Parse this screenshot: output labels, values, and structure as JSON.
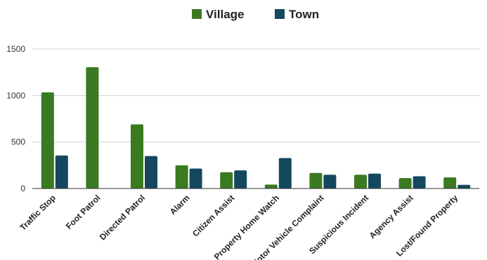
{
  "chart_data": {
    "type": "bar",
    "categories": [
      "Traffic Stop",
      "Foot Patrol",
      "Directed Patrol",
      "Alarm",
      "Citizen Assist",
      "Property Home Watch",
      "Motor Vehicle Complaint",
      "Suspicious Incident",
      "Agency Assist",
      "Lost/Found Property"
    ],
    "series": [
      {
        "name": "Village",
        "color": "#3a7a21",
        "values": [
          1035,
          1305,
          690,
          250,
          175,
          42,
          168,
          148,
          112,
          120
        ]
      },
      {
        "name": "Town",
        "color": "#15485f",
        "values": [
          355,
          0,
          350,
          215,
          195,
          328,
          148,
          160,
          132,
          40
        ]
      }
    ],
    "yticks": [
      0,
      500,
      1000,
      1500
    ],
    "ylim": [
      0,
      1500
    ],
    "grid": true,
    "legend": "top"
  }
}
